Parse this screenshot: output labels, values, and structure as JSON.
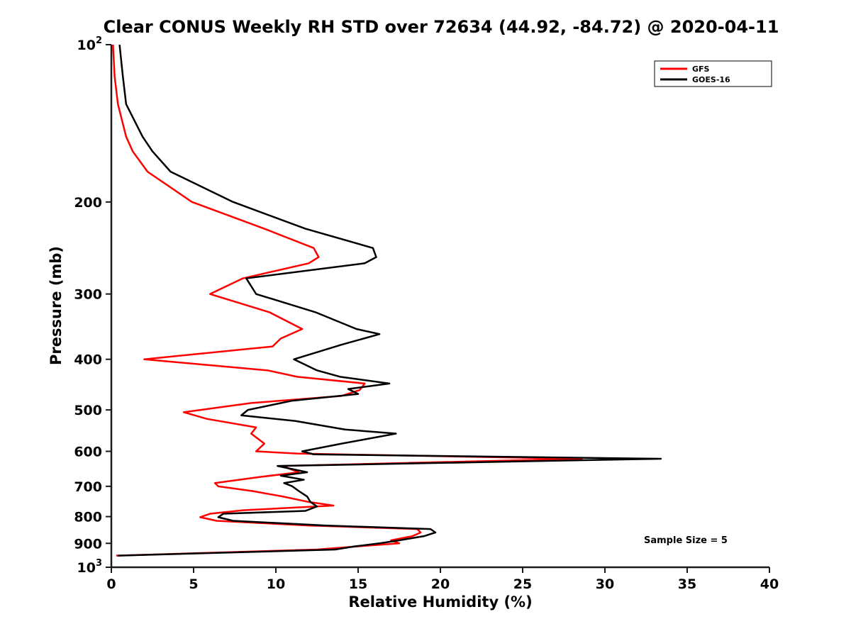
{
  "chart_data": {
    "type": "line",
    "title": "Clear CONUS Weekly RH STD over 72634 (44.92, -84.72) @ 2020-04-11",
    "xlabel": "Relative Humidity (%)",
    "ylabel": "Pressure (mb)",
    "xlim": [
      0,
      40
    ],
    "x_ticks": [
      0,
      5,
      10,
      15,
      20,
      25,
      30,
      35,
      40
    ],
    "y_scale": "log10",
    "ylim": [
      100,
      1000
    ],
    "ylog10_range": [
      2,
      3
    ],
    "y_ticks": [
      {
        "p": 100,
        "label": "10^2"
      },
      {
        "p": 200,
        "label": "200"
      },
      {
        "p": 300,
        "label": "300"
      },
      {
        "p": 400,
        "label": "400"
      },
      {
        "p": 500,
        "label": "500"
      },
      {
        "p": 600,
        "label": "600"
      },
      {
        "p": 700,
        "label": "700"
      },
      {
        "p": 800,
        "label": "800"
      },
      {
        "p": 900,
        "label": "900"
      },
      {
        "p": 1000,
        "label": "10^3"
      }
    ],
    "grid": false,
    "legend_position": "top-right",
    "annotation": "Sample Size = 5",
    "series": [
      {
        "name": "GFS",
        "color": "#ff0000",
        "pressure": [
          100,
          115,
          130,
          150,
          160,
          175,
          200,
          225,
          245,
          255,
          262,
          280,
          300,
          325,
          350,
          365,
          378,
          400,
          420,
          432,
          445,
          458,
          470,
          485,
          505,
          520,
          540,
          555,
          580,
          600,
          606,
          620,
          640,
          658,
          672,
          690,
          700,
          715,
          732,
          750,
          762,
          778,
          790,
          802,
          815,
          832,
          845,
          858,
          872,
          888,
          900,
          912,
          925,
          950
        ],
        "rh": [
          0.1,
          0.2,
          0.4,
          0.9,
          1.3,
          2.2,
          4.9,
          9.3,
          12.3,
          12.6,
          12.0,
          8.0,
          6.0,
          9.6,
          11.6,
          10.3,
          9.8,
          2.0,
          9.5,
          11.3,
          15.4,
          15.1,
          14.0,
          8.5,
          4.4,
          5.8,
          8.8,
          8.5,
          9.3,
          8.8,
          11.3,
          28.6,
          10.4,
          11.4,
          9.0,
          6.3,
          6.5,
          8.6,
          10.4,
          12.0,
          13.5,
          8.0,
          6.0,
          5.4,
          6.4,
          12.0,
          18.6,
          18.8,
          18.3,
          17.0,
          17.5,
          15.0,
          12.5,
          0.3
        ]
      },
      {
        "name": "GOES-16",
        "color": "#000000",
        "pressure": [
          100,
          115,
          130,
          150,
          160,
          175,
          200,
          225,
          245,
          255,
          262,
          280,
          300,
          325,
          350,
          358,
          375,
          400,
          420,
          432,
          445,
          456,
          466,
          480,
          500,
          512,
          525,
          545,
          555,
          580,
          600,
          608,
          620,
          640,
          658,
          668,
          680,
          690,
          700,
          715,
          732,
          750,
          765,
          780,
          790,
          802,
          815,
          832,
          845,
          858,
          872,
          888,
          900,
          912,
          925,
          950
        ],
        "rh": [
          0.5,
          0.7,
          0.9,
          1.9,
          2.5,
          3.6,
          7.4,
          11.8,
          15.9,
          16.1,
          15.4,
          8.2,
          8.8,
          12.4,
          14.9,
          16.3,
          14.0,
          11.1,
          12.5,
          13.9,
          16.9,
          14.4,
          15.0,
          11.0,
          8.3,
          7.9,
          11.2,
          14.2,
          17.3,
          14.0,
          11.6,
          12.3,
          33.4,
          10.1,
          11.9,
          10.3,
          11.7,
          10.5,
          11.0,
          11.4,
          11.9,
          12.1,
          12.5,
          11.8,
          6.8,
          6.5,
          7.4,
          13.0,
          19.4,
          19.7,
          19.0,
          17.5,
          16.3,
          14.8,
          13.6,
          0.4
        ]
      }
    ]
  }
}
